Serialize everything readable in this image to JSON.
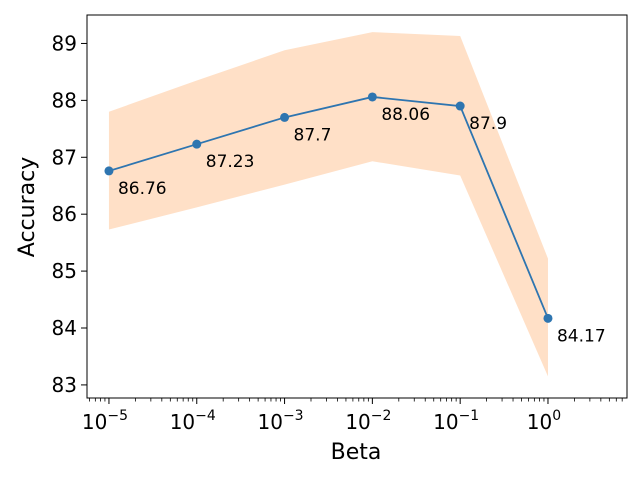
{
  "chart_data": {
    "type": "line",
    "title": "",
    "xlabel": "Beta",
    "ylabel": "Accuracy",
    "x_scale": "log",
    "x": [
      1e-05,
      0.0001,
      0.001,
      0.01,
      0.1,
      1
    ],
    "x_tick_labels": [
      {
        "base": "10",
        "exp": "−5"
      },
      {
        "base": "10",
        "exp": "−4"
      },
      {
        "base": "10",
        "exp": "−3"
      },
      {
        "base": "10",
        "exp": "−2"
      },
      {
        "base": "10",
        "exp": "−1"
      },
      {
        "base": "10",
        "exp": "0"
      }
    ],
    "y_ticks": [
      83,
      84,
      85,
      86,
      87,
      88,
      89
    ],
    "ylim": [
      82.77,
      89.5
    ],
    "series": [
      {
        "values": [
          86.76,
          87.23,
          87.7,
          88.06,
          87.9,
          84.17
        ],
        "labels": [
          "86.76",
          "87.23",
          "87.7",
          "88.06",
          "87.9",
          "84.17"
        ],
        "band_upper": [
          87.8,
          88.35,
          88.88,
          89.2,
          89.13,
          85.22
        ],
        "band_lower": [
          85.73,
          86.12,
          86.52,
          86.93,
          86.68,
          83.15
        ],
        "line_color": "#2e75b0",
        "band_color": "#ffe0c7"
      }
    ],
    "grid": false,
    "legend": "none"
  }
}
